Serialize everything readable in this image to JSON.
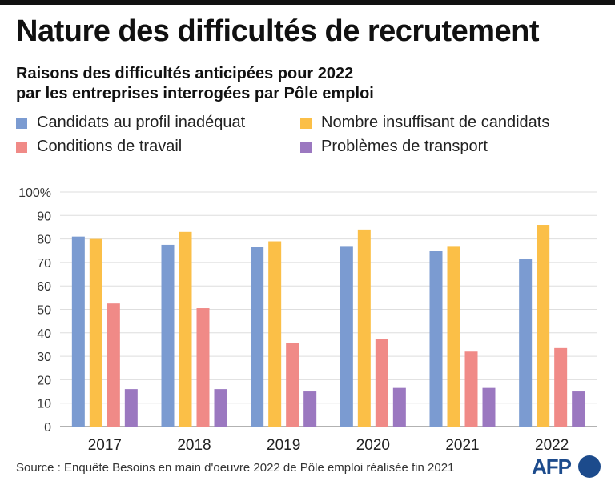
{
  "header": {
    "title": "Nature des difficultés de recrutement",
    "subtitle_line1": "Raisons des difficultés anticipées pour 2022",
    "subtitle_line2": "par les entreprises interrogées par Pôle emploi"
  },
  "chart_data": {
    "type": "bar",
    "categories": [
      "2017",
      "2018",
      "2019",
      "2020",
      "2021",
      "2022"
    ],
    "series": [
      {
        "name": "Candidats au profil inadéquat",
        "color": "#7b9bd1",
        "values": [
          81,
          77.5,
          76.5,
          77,
          75,
          71.5
        ]
      },
      {
        "name": "Nombre insuffisant de candidats",
        "color": "#fbbf47",
        "values": [
          80,
          83,
          79,
          84,
          77,
          86
        ]
      },
      {
        "name": "Conditions de travail",
        "color": "#f08a87",
        "values": [
          52.5,
          50.5,
          35.5,
          37.5,
          32,
          33.5
        ]
      },
      {
        "name": "Problèmes de transport",
        "color": "#9b78c0",
        "values": [
          16,
          16,
          15,
          16.5,
          16.5,
          15
        ]
      }
    ],
    "ylim": [
      0,
      100
    ],
    "yticks": [
      "0",
      "10",
      "20",
      "30",
      "40",
      "50",
      "60",
      "70",
      "80",
      "90",
      "100%"
    ],
    "grid": true,
    "legend_position": "top"
  },
  "footer": {
    "source": "Source : Enquête Besoins en main d'oeuvre 2022 de Pôle emploi réalisée fin 2021",
    "logo_text": "AFP",
    "logo_color": "#1c4b8c"
  }
}
